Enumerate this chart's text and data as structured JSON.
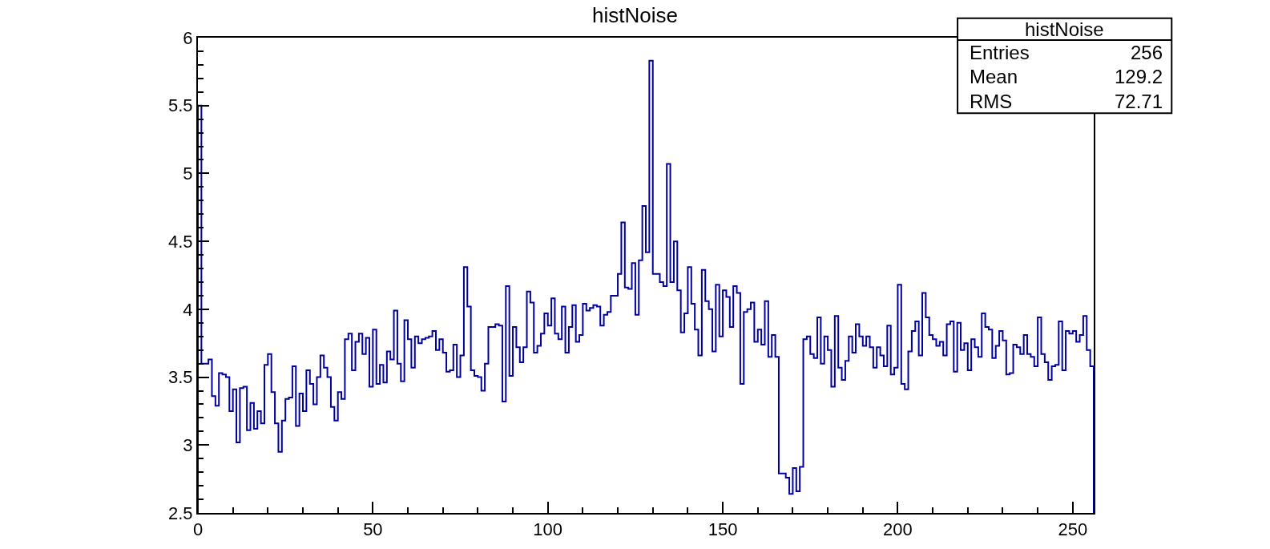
{
  "chart_data": {
    "type": "histogram",
    "title": "histNoise",
    "bins": [
      0,
      1,
      2,
      3,
      4,
      5,
      6,
      7,
      8,
      9,
      10,
      11,
      12,
      13,
      14,
      15,
      16,
      17,
      18,
      19,
      20,
      21,
      22,
      23,
      24,
      25,
      26,
      27,
      28,
      29,
      30,
      31,
      32,
      33,
      34,
      35,
      36,
      37,
      38,
      39,
      40,
      41,
      42,
      43,
      44,
      45,
      46,
      47,
      48,
      49,
      50,
      51,
      52,
      53,
      54,
      55,
      56,
      57,
      58,
      59,
      60,
      61,
      62,
      63,
      64,
      65,
      66,
      67,
      68,
      69,
      70,
      71,
      72,
      73,
      74,
      75,
      76,
      77,
      78,
      79,
      80,
      81,
      82,
      83,
      84,
      85,
      86,
      87,
      88,
      89,
      90,
      91,
      92,
      93,
      94,
      95,
      96,
      97,
      98,
      99,
      100,
      101,
      102,
      103,
      104,
      105,
      106,
      107,
      108,
      109,
      110,
      111,
      112,
      113,
      114,
      115,
      116,
      117,
      118,
      119,
      120,
      121,
      122,
      123,
      124,
      125,
      126,
      127,
      128,
      129,
      130,
      131,
      132,
      133,
      134,
      135,
      136,
      137,
      138,
      139,
      140,
      141,
      142,
      143,
      144,
      145,
      146,
      147,
      148,
      149,
      150,
      151,
      152,
      153,
      154,
      155,
      156,
      157,
      158,
      159,
      160,
      161,
      162,
      163,
      164,
      165,
      166,
      167,
      168,
      169,
      170,
      171,
      172,
      173,
      174,
      175,
      176,
      177,
      178,
      179,
      180,
      181,
      182,
      183,
      184,
      185,
      186,
      187,
      188,
      189,
      190,
      191,
      192,
      193,
      194,
      195,
      196,
      197,
      198,
      199,
      200,
      201,
      202,
      203,
      204,
      205,
      206,
      207,
      208,
      209,
      210,
      211,
      212,
      213,
      214,
      215,
      216,
      217,
      218,
      219,
      220,
      221,
      222,
      223,
      224,
      225,
      226,
      227,
      228,
      229,
      230,
      231,
      232,
      233,
      234,
      235,
      236,
      237,
      238,
      239,
      240,
      241,
      242,
      243,
      244,
      245,
      246,
      247,
      248,
      249,
      250,
      251,
      252,
      253,
      254,
      255,
      256
    ],
    "values": [
      5.5,
      3.6,
      3.6,
      3.63,
      3.36,
      3.29,
      3.53,
      3.52,
      3.5,
      3.25,
      3.41,
      3.02,
      3.42,
      3.43,
      3.11,
      3.31,
      3.12,
      3.25,
      3.16,
      3.59,
      3.67,
      3.39,
      3.16,
      2.95,
      3.18,
      3.34,
      3.35,
      3.58,
      3.14,
      3.38,
      3.25,
      3.55,
      3.45,
      3.3,
      3.5,
      3.66,
      3.57,
      3.5,
      3.28,
      3.18,
      3.39,
      3.34,
      3.78,
      3.82,
      3.55,
      3.76,
      3.82,
      3.67,
      3.79,
      3.43,
      3.85,
      3.45,
      3.59,
      3.46,
      3.69,
      3.63,
      3.99,
      3.6,
      3.47,
      3.92,
      3.78,
      3.57,
      3.8,
      3.75,
      3.78,
      3.79,
      3.8,
      3.84,
      3.7,
      3.78,
      3.68,
      3.54,
      3.55,
      3.74,
      3.5,
      3.66,
      4.31,
      4.02,
      3.55,
      3.51,
      3.5,
      3.4,
      3.6,
      3.87,
      3.87,
      3.89,
      3.88,
      3.32,
      4.17,
      3.51,
      3.87,
      3.72,
      3.61,
      3.72,
      4.13,
      4.05,
      3.68,
      3.73,
      3.82,
      3.97,
      3.88,
      4.08,
      3.82,
      3.78,
      4.02,
      3.68,
      3.87,
      4.03,
      3.76,
      3.81,
      4.04,
      3.99,
      4.01,
      4.03,
      4.02,
      3.88,
      3.96,
      3.98,
      4.1,
      4.1,
      4.26,
      4.64,
      4.16,
      4.15,
      4.34,
      3.96,
      4.36,
      4.76,
      4.42,
      5.83,
      4.26,
      4.26,
      4.2,
      4.17,
      5.07,
      4.2,
      4.5,
      4.14,
      3.83,
      3.97,
      4.31,
      4.04,
      3.85,
      3.66,
      4.29,
      4.06,
      4.0,
      3.69,
      4.18,
      3.8,
      4.14,
      4.09,
      3.87,
      4.17,
      4.12,
      3.45,
      3.98,
      4.0,
      4.05,
      3.76,
      3.85,
      3.74,
      4.06,
      3.65,
      3.81,
      3.65,
      2.79,
      2.79,
      2.76,
      2.64,
      2.83,
      2.66,
      2.84,
      3.78,
      3.8,
      3.67,
      3.64,
      3.94,
      3.6,
      3.8,
      3.7,
      3.43,
      3.95,
      3.57,
      3.48,
      3.62,
      3.8,
      3.68,
      3.89,
      3.8,
      3.73,
      3.8,
      3.72,
      3.57,
      3.72,
      3.66,
      3.58,
      3.88,
      3.52,
      3.57,
      4.18,
      3.45,
      3.41,
      3.69,
      3.84,
      3.91,
      3.66,
      4.12,
      3.94,
      3.81,
      3.78,
      3.73,
      3.76,
      3.66,
      3.89,
      3.91,
      3.54,
      3.9,
      3.7,
      3.75,
      3.55,
      3.78,
      3.72,
      3.65,
      3.97,
      3.87,
      3.85,
      3.64,
      3.73,
      3.84,
      3.77,
      3.52,
      3.53,
      3.74,
      3.72,
      3.67,
      3.81,
      3.67,
      3.65,
      3.58,
      3.94,
      3.67,
      3.61,
      3.48,
      3.58,
      3.59,
      3.91,
      3.55,
      3.84,
      3.82,
      3.84,
      3.76,
      3.81,
      3.95,
      3.7,
      3.58
    ],
    "color": "#0000a0",
    "xlim": [
      0,
      256
    ],
    "xticks": [
      0,
      50,
      100,
      150,
      200,
      250
    ],
    "ylim": [
      2.5,
      6
    ],
    "yticks": [
      2.5,
      3,
      3.5,
      4,
      4.5,
      5,
      5.5,
      6
    ],
    "annotations": [
      "histNoise",
      "Entries",
      "256",
      "Mean",
      "129.2",
      "RMS",
      "72.71"
    ]
  }
}
